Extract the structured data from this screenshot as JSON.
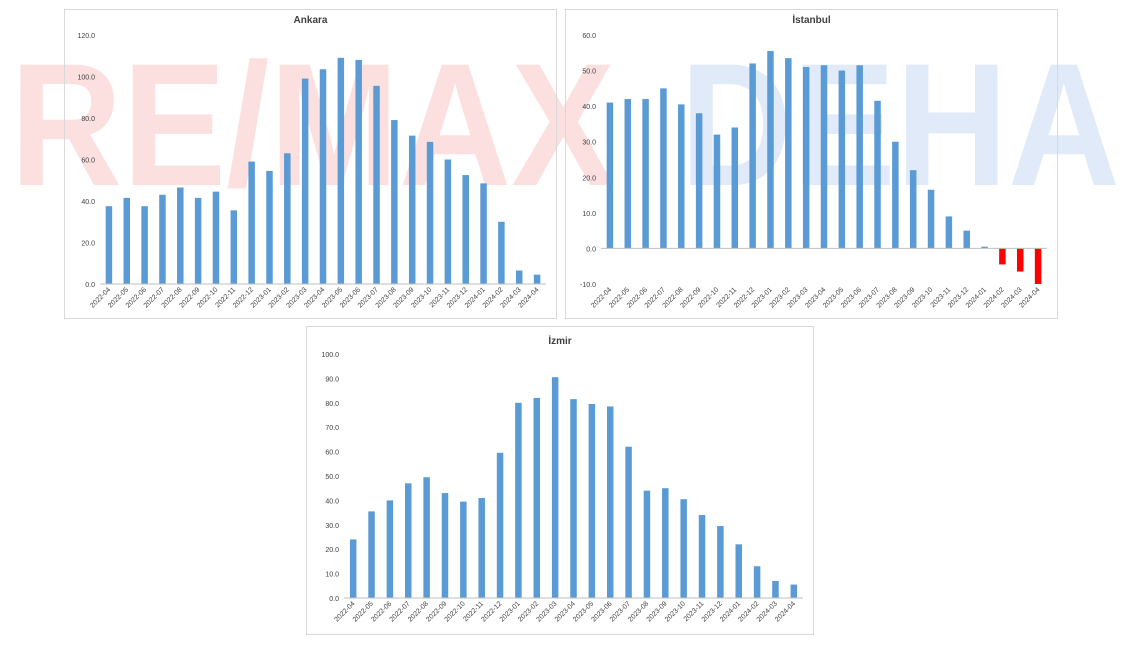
{
  "watermark": {
    "left_text": "RE/MAX",
    "right_text": "DEHA",
    "left_color": "#e60000",
    "right_color": "#0055cc"
  },
  "colors": {
    "bar": "#5b9bd5",
    "negative_bar": "#ff0000",
    "axis": "#bfbfbf",
    "text": "#404040"
  },
  "chart_data": [
    {
      "id": "ankara",
      "type": "bar",
      "title": "Ankara",
      "categories": [
        "2022-04",
        "2022-05",
        "2022-06",
        "2022-07",
        "2022-08",
        "2022-09",
        "2022-10",
        "2022-11",
        "2022-12",
        "2023-01",
        "2023-02",
        "2023-03",
        "2023-04",
        "2023-05",
        "2023-06",
        "2023-07",
        "2023-08",
        "2023-09",
        "2023-10",
        "2023-11",
        "2023-12",
        "2024-01",
        "2024-02",
        "2024-03",
        "2024-04"
      ],
      "values": [
        37.5,
        41.5,
        37.5,
        43.0,
        46.5,
        41.5,
        44.5,
        35.5,
        59.0,
        54.5,
        63.0,
        99.0,
        103.5,
        109.0,
        108.0,
        95.5,
        79.0,
        71.5,
        68.5,
        60.0,
        52.5,
        48.5,
        30.0,
        6.5,
        4.5
      ],
      "ylim": [
        0,
        120
      ],
      "yticks": [
        "0.0",
        "20.0",
        "40.0",
        "60.0",
        "80.0",
        "100.0",
        "120.0"
      ],
      "ytick_values": [
        0,
        20,
        40,
        60,
        80,
        100,
        120
      ],
      "grid": false,
      "xlabel": "",
      "ylabel": ""
    },
    {
      "id": "istanbul",
      "type": "bar",
      "title": "İstanbul",
      "categories": [
        "2022-04",
        "2022-05",
        "2022-06",
        "2022-07",
        "2022-08",
        "2022-09",
        "2022-10",
        "2022-11",
        "2022-12",
        "2023-01",
        "2023-02",
        "2023-03",
        "2023-04",
        "2023-05",
        "2023-06",
        "2023-07",
        "2023-08",
        "2023-09",
        "2023-10",
        "2023-11",
        "2023-12",
        "2024-01",
        "2024-02",
        "2024-03",
        "2024-04"
      ],
      "values": [
        41.0,
        42.0,
        42.0,
        45.0,
        40.5,
        38.0,
        32.0,
        34.0,
        52.0,
        55.5,
        53.5,
        51.0,
        51.5,
        50.0,
        51.5,
        41.5,
        30.0,
        22.0,
        16.5,
        9.0,
        5.0,
        0.5,
        -4.5,
        -6.5,
        -10.0
      ],
      "ylim": [
        -10,
        60
      ],
      "yticks": [
        "-10.0",
        "0.0",
        "10.0",
        "20.0",
        "30.0",
        "40.0",
        "50.0",
        "60.0"
      ],
      "ytick_values": [
        -10,
        0,
        10,
        20,
        30,
        40,
        50,
        60
      ],
      "grid": false,
      "xlabel": "",
      "ylabel": ""
    },
    {
      "id": "izmir",
      "type": "bar",
      "title": "İzmir",
      "categories": [
        "2022-04",
        "2022-05",
        "2022-06",
        "2022-07",
        "2022-08",
        "2022-09",
        "2022-10",
        "2022-11",
        "2022-12",
        "2023-01",
        "2023-02",
        "2023-03",
        "2023-04",
        "2023-05",
        "2023-06",
        "2023-07",
        "2023-08",
        "2023-09",
        "2023-10",
        "2023-11",
        "2023-12",
        "2024-01",
        "2024-02",
        "2024-03",
        "2024-04"
      ],
      "values": [
        24.0,
        35.5,
        40.0,
        47.0,
        49.5,
        43.0,
        39.5,
        41.0,
        59.5,
        80.0,
        82.0,
        90.5,
        81.5,
        79.5,
        78.5,
        62.0,
        44.0,
        45.0,
        40.5,
        34.0,
        29.5,
        22.0,
        13.0,
        7.0,
        5.5
      ],
      "ylim": [
        0,
        100
      ],
      "yticks": [
        "0.0",
        "10.0",
        "20.0",
        "30.0",
        "40.0",
        "50.0",
        "60.0",
        "70.0",
        "80.0",
        "90.0",
        "100.0"
      ],
      "ytick_values": [
        0,
        10,
        20,
        30,
        40,
        50,
        60,
        70,
        80,
        90,
        100
      ],
      "grid": false,
      "xlabel": "",
      "ylabel": ""
    }
  ]
}
